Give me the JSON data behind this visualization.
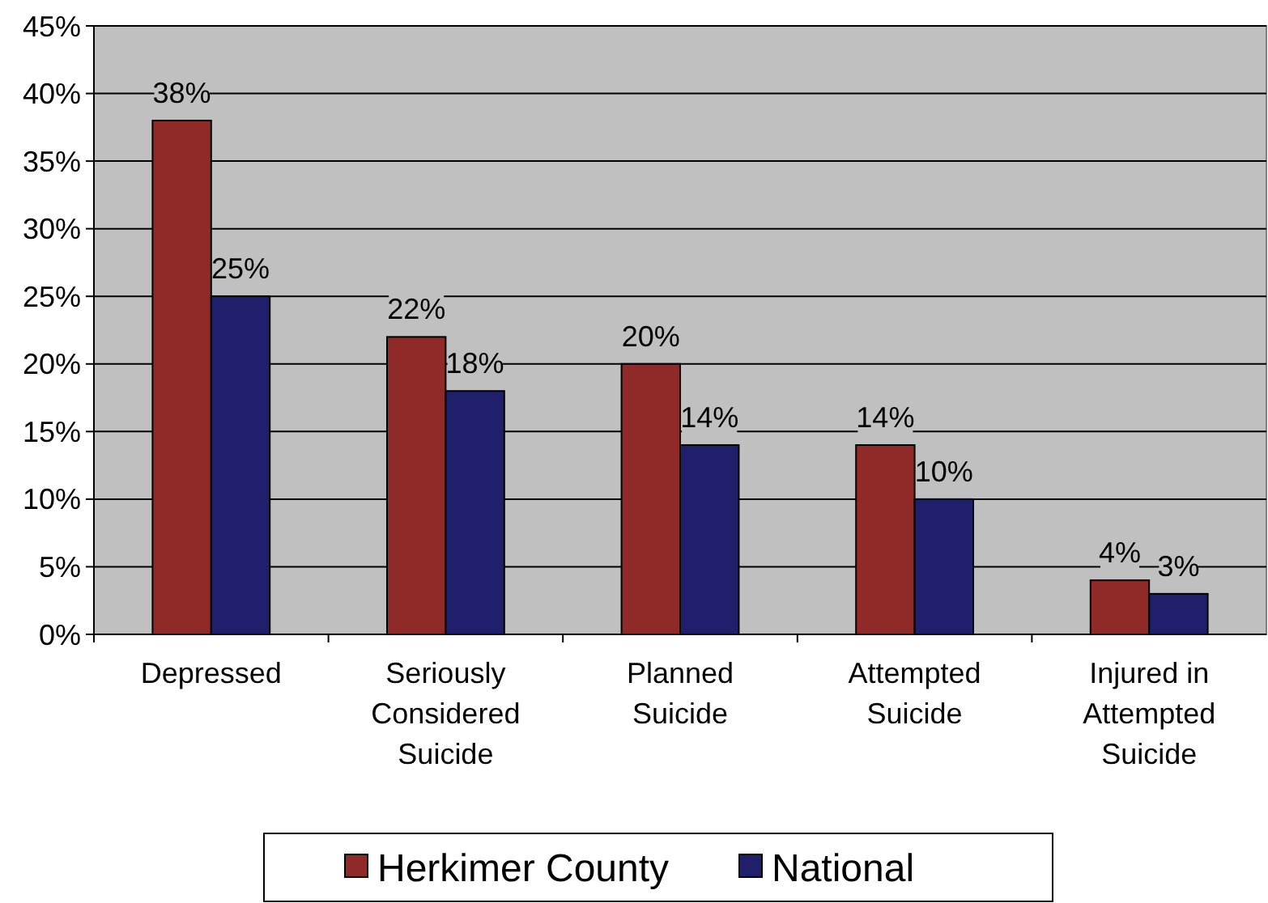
{
  "chart_data": {
    "type": "bar",
    "categories": [
      "Depressed",
      "Seriously Considered Suicide",
      "Planned Suicide",
      "Attempted Suicide",
      "Injured in Attempted Suicide"
    ],
    "series": [
      {
        "name": "Herkimer County",
        "color": "#902a28",
        "values": [
          38,
          22,
          20,
          14,
          4
        ],
        "value_labels": [
          "38%",
          "22%",
          "20%",
          "14%",
          "4%"
        ]
      },
      {
        "name": "National",
        "color": "#1f1f6b",
        "values": [
          25,
          18,
          14,
          10,
          3
        ],
        "value_labels": [
          "25%",
          "18%",
          "14%",
          "10%",
          "3%"
        ]
      }
    ],
    "ylim": [
      0,
      45
    ],
    "yticks": [
      {
        "value": 0,
        "label": "0%"
      },
      {
        "value": 5,
        "label": "5%"
      },
      {
        "value": 10,
        "label": "10%"
      },
      {
        "value": 15,
        "label": "15%"
      },
      {
        "value": 20,
        "label": "20%"
      },
      {
        "value": 25,
        "label": "25%"
      },
      {
        "value": 30,
        "label": "30%"
      },
      {
        "value": 35,
        "label": "35%"
      },
      {
        "value": 40,
        "label": "40%"
      },
      {
        "value": 45,
        "label": "45%"
      }
    ],
    "grid": "y",
    "legend": "bottom"
  }
}
